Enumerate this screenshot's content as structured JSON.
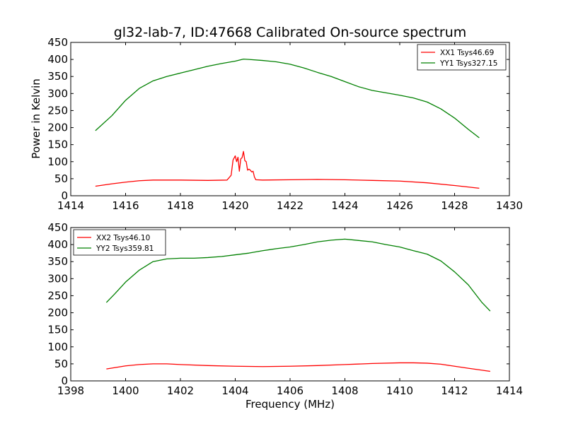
{
  "figure": {
    "title": "gl32-lab-7, ID:47668 Calibrated On-source spectrum",
    "xlabel": "Frequency (MHz)",
    "ylabel": "Power in Kelvin"
  },
  "chart_data": [
    {
      "type": "line",
      "title": "gl32-lab-7, ID:47668 Calibrated On-source spectrum",
      "xlabel": "",
      "ylabel": "Power in Kelvin",
      "xlim": [
        1414,
        1430
      ],
      "ylim": [
        0,
        450
      ],
      "xticks": [
        1414,
        1416,
        1418,
        1420,
        1422,
        1424,
        1426,
        1428,
        1430
      ],
      "yticks": [
        0,
        50,
        100,
        150,
        200,
        250,
        300,
        350,
        400,
        450
      ],
      "grid": false,
      "legend_position": "top-right",
      "series": [
        {
          "name": "XX1 Tsys46.69",
          "color": "#ff0000",
          "x": [
            1414.9,
            1415.5,
            1416,
            1416.5,
            1417,
            1418,
            1419,
            1419.7,
            1419.85,
            1419.92,
            1420.0,
            1420.05,
            1420.1,
            1420.15,
            1420.2,
            1420.25,
            1420.3,
            1420.35,
            1420.4,
            1420.45,
            1420.5,
            1420.55,
            1420.6,
            1420.65,
            1420.7,
            1420.75,
            1421,
            1422,
            1423,
            1424,
            1425,
            1426,
            1427,
            1428,
            1428.9
          ],
          "y": [
            28,
            35,
            40,
            44,
            46,
            46,
            45,
            46,
            60,
            105,
            117,
            100,
            113,
            72,
            108,
            112,
            130,
            103,
            100,
            75,
            78,
            75,
            70,
            72,
            55,
            47,
            46,
            47,
            48,
            47,
            45,
            43,
            38,
            30,
            22
          ]
        },
        {
          "name": "YY1 Tsys327.15",
          "color": "#008000",
          "x": [
            1414.9,
            1415.5,
            1416,
            1416.5,
            1417,
            1417.5,
            1418,
            1418.5,
            1419,
            1419.5,
            1420,
            1420.3,
            1420.5,
            1421,
            1421.5,
            1422,
            1422.5,
            1423,
            1423.5,
            1424,
            1424.5,
            1425,
            1425.5,
            1426,
            1426.5,
            1427,
            1427.5,
            1428,
            1428.5,
            1428.9
          ],
          "y": [
            191,
            235,
            280,
            315,
            337,
            350,
            360,
            370,
            380,
            388,
            395,
            401,
            400,
            397,
            393,
            386,
            375,
            362,
            350,
            335,
            320,
            309,
            302,
            295,
            287,
            275,
            255,
            228,
            195,
            170
          ]
        }
      ]
    },
    {
      "type": "line",
      "title": "",
      "xlabel": "Frequency (MHz)",
      "ylabel": "",
      "xlim": [
        1398,
        1414
      ],
      "ylim": [
        0,
        450
      ],
      "xticks": [
        1398,
        1400,
        1402,
        1404,
        1406,
        1408,
        1410,
        1412,
        1414
      ],
      "yticks": [
        0,
        50,
        100,
        150,
        200,
        250,
        300,
        350,
        400,
        450
      ],
      "grid": false,
      "legend_position": "top-left",
      "series": [
        {
          "name": "XX2 Tsys46.10",
          "color": "#ff0000",
          "x": [
            1399.3,
            1400,
            1400.5,
            1401,
            1401.5,
            1402,
            1403,
            1404,
            1405,
            1406,
            1407,
            1408,
            1409,
            1410,
            1410.5,
            1411,
            1411.5,
            1412,
            1412.5,
            1413.3
          ],
          "y": [
            35,
            44,
            48,
            50,
            50,
            48,
            45,
            43,
            42,
            43,
            45,
            48,
            51,
            53,
            53,
            52,
            49,
            43,
            37,
            28
          ]
        },
        {
          "name": "YY2 Tsys359.81",
          "color": "#008000",
          "x": [
            1399.3,
            1399.6,
            1400,
            1400.5,
            1401,
            1401.5,
            1402,
            1402.5,
            1403,
            1403.5,
            1404,
            1404.5,
            1405,
            1405.5,
            1406,
            1406.5,
            1407,
            1407.5,
            1408,
            1408.5,
            1409,
            1409.5,
            1410,
            1410.5,
            1411,
            1411.5,
            1412,
            1412.5,
            1413,
            1413.3
          ],
          "y": [
            230,
            255,
            290,
            325,
            350,
            358,
            360,
            360,
            362,
            365,
            370,
            375,
            382,
            388,
            393,
            400,
            408,
            413,
            416,
            412,
            408,
            400,
            393,
            382,
            372,
            352,
            320,
            282,
            230,
            205
          ]
        }
      ]
    }
  ]
}
